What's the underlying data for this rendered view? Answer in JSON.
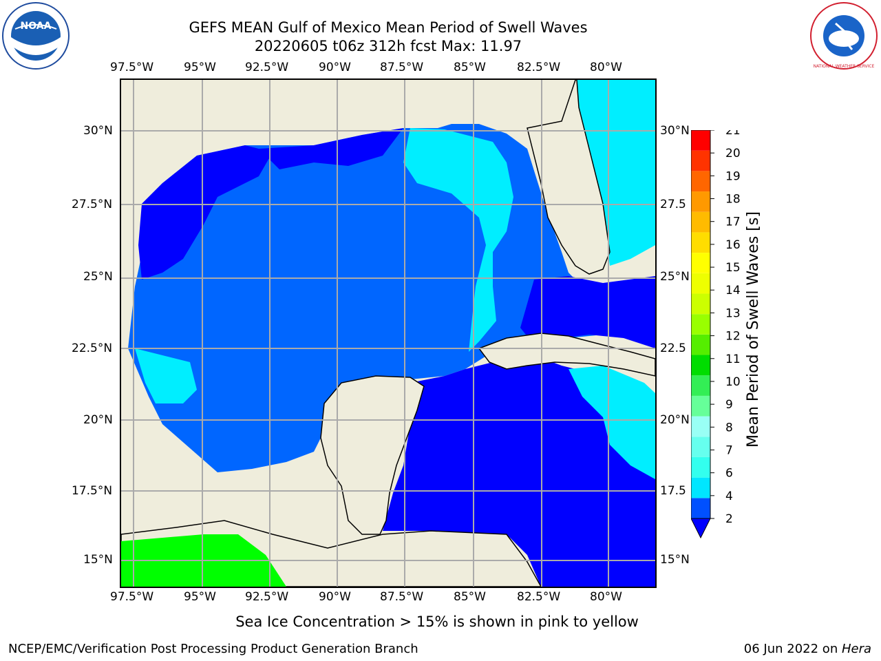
{
  "title_line1": "GEFS MEAN Gulf of Mexico Mean Period of Swell Waves",
  "title_line2": "20220605 t06z 312h fcst   Max: 11.97",
  "lon_labels": [
    "97.5°W",
    "95°W",
    "92.5°W",
    "90°W",
    "87.5°W",
    "85°W",
    "82.5°W",
    "80°W"
  ],
  "lat_labels_left": [
    "30°N",
    "27.5°N",
    "25°N",
    "22.5°N",
    "20°N",
    "17.5°N",
    "15°N"
  ],
  "lat_labels_right": [
    "30°N",
    "27.5",
    "25°N",
    "22.5",
    "20°N",
    "17.5",
    "15°N"
  ],
  "colorbar": {
    "label": "Mean Period of Swell Waves [s]",
    "ticks": [
      "2",
      "4",
      "6",
      "7",
      "8",
      "9",
      "10",
      "11",
      "12",
      "13",
      "14",
      "15",
      "16",
      "17",
      "18",
      "19",
      "20",
      "21"
    ],
    "colors": [
      "#0050ff",
      "#00e6ff",
      "#33ffee",
      "#66ffee",
      "#99fff5",
      "#66ff99",
      "#33ee55",
      "#00dd00",
      "#55ee00",
      "#99ff00",
      "#ccff00",
      "#eeff00",
      "#ffff00",
      "#ffdd00",
      "#ffbb00",
      "#ff9900",
      "#ff6600",
      "#ff3300",
      "#ff0000"
    ]
  },
  "footer_note": "Sea Ice Concentration > 15% is shown in pink to yellow",
  "footer_left": "NCEP/EMC/Verification Post Processing Product Generation Branch",
  "footer_right_date": "06 Jun 2022 on ",
  "footer_right_host": "Hera",
  "logos": {
    "left": "NOAA",
    "right": "NATIONAL WEATHER SERVICE"
  },
  "colors": {
    "land": "#efeddc",
    "deep": "#0000ff",
    "mid": "#0066ff",
    "light": "#00eeff",
    "green": "#00ff00"
  }
}
